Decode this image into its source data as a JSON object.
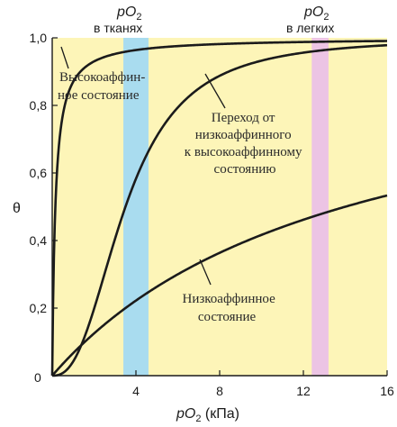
{
  "chart_data": {
    "type": "line",
    "x_range": [
      0,
      16
    ],
    "y_range": [
      0,
      1.0
    ],
    "x_ticks": [
      "4",
      "8",
      "12",
      "16"
    ],
    "y_ticks": [
      "0",
      "0,2",
      "0,4",
      "0,6",
      "0,8",
      "1,0"
    ],
    "origin_label": "0",
    "xlabel": {
      "main": "pO",
      "sub": "2",
      "unit": " (кПа)"
    },
    "ylabel": "θ",
    "bands": [
      {
        "label_main": "pO",
        "label_sub": "2",
        "label_line2": "в тканях",
        "x_from": 3.4,
        "x_to": 4.6,
        "color": "#a9dcef"
      },
      {
        "label_main": "pO",
        "label_sub": "2",
        "label_line2": "в легких",
        "x_from": 12.4,
        "x_to": 13.2,
        "color": "#ecc4e4"
      }
    ],
    "background_color": "#fdf5b8",
    "series": [
      {
        "kind": "hyperbolic",
        "K": 0.15,
        "points": [
          [
            0,
            0
          ],
          [
            0.5,
            0.77
          ],
          [
            1,
            0.87
          ],
          [
            2,
            0.93
          ],
          [
            4,
            0.964
          ],
          [
            8,
            0.982
          ],
          [
            12,
            0.988
          ],
          [
            16,
            0.991
          ]
        ]
      },
      {
        "kind": "hyperbolic",
        "K": 14,
        "points": [
          [
            0,
            0
          ],
          [
            2,
            0.125
          ],
          [
            4,
            0.222
          ],
          [
            8,
            0.364
          ],
          [
            12,
            0.462
          ],
          [
            16,
            0.533
          ]
        ]
      },
      {
        "kind": "sigmoid",
        "P50": 3.5,
        "n": 2.5,
        "points": [
          [
            0,
            0
          ],
          [
            2,
            0.2
          ],
          [
            3,
            0.4
          ],
          [
            4,
            0.58
          ],
          [
            6,
            0.79
          ],
          [
            8,
            0.89
          ],
          [
            12,
            0.953
          ],
          [
            16,
            0.97
          ]
        ]
      }
    ],
    "annotations": [
      {
        "lines": [
          "Высокоаффин-",
          "ное состояние"
        ]
      },
      {
        "lines": [
          "Переход от",
          "низкоаффинного",
          "к высокоаффинному",
          "состоянию"
        ]
      },
      {
        "lines": [
          "Низкоаффинное",
          "состояние"
        ]
      }
    ]
  }
}
